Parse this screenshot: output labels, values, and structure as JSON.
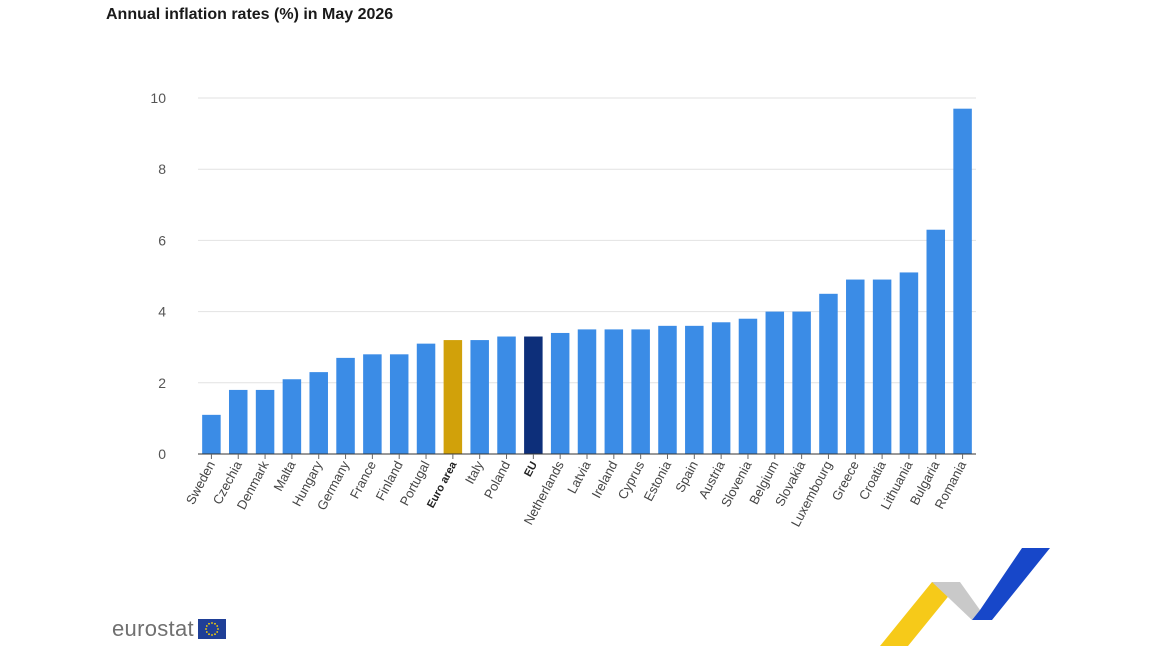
{
  "title": "Annual inflation rates (%) in May 2026",
  "logo": {
    "text": "eurostat",
    "flag_icon": "eu-flag-icon"
  },
  "colors": {
    "bar": "#3b8ce6",
    "euro_area": "#d1a10a",
    "eu": "#0d2f7a",
    "grid": "#e2e2e2"
  },
  "chart_data": {
    "type": "bar",
    "title": "Annual inflation rates (%) in May 2026",
    "categories": [
      "Sweden",
      "Czechia",
      "Denmark",
      "Malta",
      "Hungary",
      "Germany",
      "France",
      "Finland",
      "Portugal",
      "Euro area",
      "Italy",
      "Poland",
      "EU",
      "Netherlands",
      "Latvia",
      "Ireland",
      "Cyprus",
      "Estonia",
      "Spain",
      "Austria",
      "Slovenia",
      "Belgium",
      "Slovakia",
      "Luxembourg",
      "Greece",
      "Croatia",
      "Lithuania",
      "Bulgaria",
      "Romania"
    ],
    "values": [
      1.1,
      1.8,
      1.8,
      2.1,
      2.3,
      2.7,
      2.8,
      2.8,
      3.1,
      3.2,
      3.2,
      3.3,
      3.3,
      3.4,
      3.5,
      3.5,
      3.5,
      3.6,
      3.6,
      3.7,
      3.8,
      4.0,
      4.0,
      4.5,
      4.9,
      4.9,
      5.1,
      6.3,
      9.7
    ],
    "highlight": {
      "Euro area": "euro_area",
      "EU": "eu"
    },
    "bold_categories": [
      "Euro area",
      "EU"
    ],
    "ylim": [
      0,
      10
    ],
    "yticks": [
      0,
      2,
      4,
      6,
      8,
      10
    ],
    "grid": true,
    "legend": "none"
  }
}
